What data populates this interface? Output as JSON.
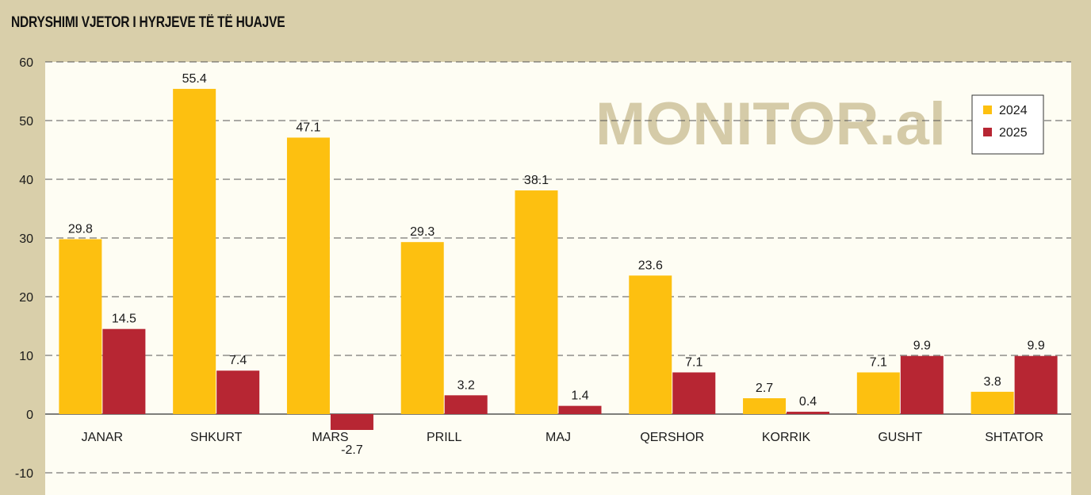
{
  "title": "NDRYSHIMI VJETOR I HYRJEVE TË TË HUAJVE",
  "watermark": "MONITOR.al",
  "chart_data": {
    "type": "bar",
    "title": "NDRYSHIMI VJETOR I HYRJEVE TË TË HUAJVE",
    "categories": [
      "JANAR",
      "SHKURT",
      "MARS",
      "PRILL",
      "MAJ",
      "QERSHOR",
      "KORRIK",
      "GUSHT",
      "SHTATOR"
    ],
    "series": [
      {
        "name": "2024",
        "color": "#fdc010",
        "values": [
          29.8,
          55.4,
          47.1,
          29.3,
          38.1,
          23.6,
          2.7,
          7.1,
          3.8
        ]
      },
      {
        "name": "2025",
        "color": "#b72633",
        "values": [
          14.5,
          7.4,
          -2.7,
          3.2,
          1.4,
          7.1,
          0.4,
          9.9,
          9.9
        ]
      }
    ],
    "ylim": [
      -10,
      60
    ],
    "yticks": [
      -10,
      0,
      10,
      20,
      30,
      40,
      50,
      60
    ],
    "xlabel": "",
    "ylabel": "",
    "grid": true,
    "legend": "top-right"
  }
}
